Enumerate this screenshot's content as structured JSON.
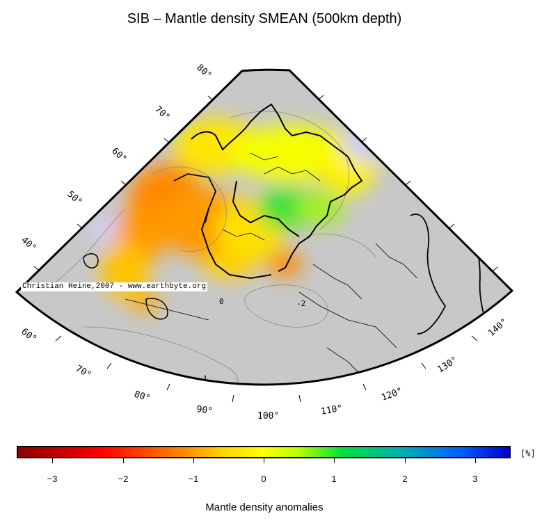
{
  "title": "SIB – Mantle density SMEAN (500km depth)",
  "map": {
    "latitude_labels": [
      "80°",
      "70°",
      "60°",
      "50°",
      "40°"
    ],
    "longitude_labels": [
      "60°",
      "70°",
      "80°",
      "90°",
      "100°",
      "110°",
      "120°",
      "130°",
      "140°"
    ],
    "contour_labels": [
      "-1",
      "-2",
      "0"
    ],
    "credit": "Christian Heine,2007 - www.earthbyte.org",
    "land_fill": "#c8c8c8",
    "coast_color": "#000000"
  },
  "colorbar": {
    "unit": "[%]",
    "tick_labels": [
      "−3",
      "−2",
      "−1",
      "0",
      "1",
      "2",
      "3"
    ],
    "label": "Mantle density anomalies",
    "colors": [
      "#8b0000",
      "#ff0000",
      "#ff8c00",
      "#ffff00",
      "#00e040",
      "#0060ff",
      "#0000c8"
    ]
  }
}
